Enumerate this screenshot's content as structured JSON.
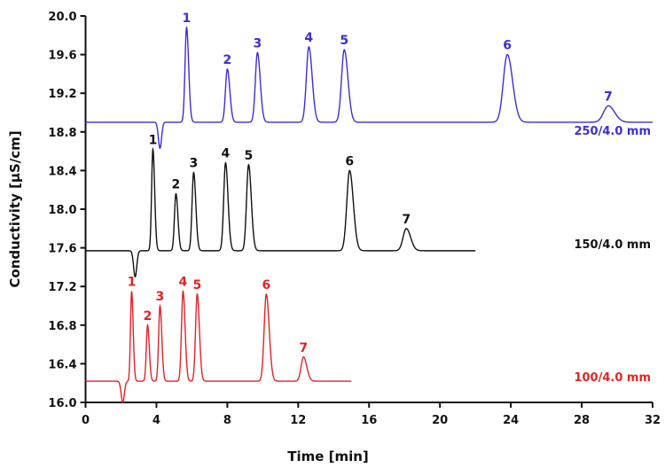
{
  "chart_data": {
    "type": "line",
    "title": "",
    "xlabel": "Time [min]",
    "ylabel": "Conductivity [µS/cm]",
    "xlim": [
      0,
      32
    ],
    "ylim": [
      16.0,
      20.0
    ],
    "xticks": [
      "0",
      "4",
      "8",
      "12",
      "16",
      "20",
      "24",
      "28",
      "32"
    ],
    "yticks": [
      "16.0",
      "16.4",
      "16.8",
      "17.2",
      "17.6",
      "18.0",
      "18.4",
      "18.8",
      "19.2",
      "19.6",
      "20.0"
    ],
    "grid": false,
    "series": [
      {
        "name": "250/4.0 mm",
        "color": "#3b2fd6",
        "baseline": 18.9,
        "end_time": 32,
        "dip": {
          "time": 4.2,
          "value": 18.63
        },
        "peaks": [
          {
            "label": "1",
            "time": 5.7,
            "height": 19.88
          },
          {
            "label": "2",
            "time": 8.0,
            "height": 19.45
          },
          {
            "label": "3",
            "time": 9.7,
            "height": 19.62
          },
          {
            "label": "4",
            "time": 12.6,
            "height": 19.68
          },
          {
            "label": "5",
            "time": 14.6,
            "height": 19.65
          },
          {
            "label": "6",
            "time": 23.8,
            "height": 19.6
          },
          {
            "label": "7",
            "time": 29.5,
            "height": 19.07
          }
        ]
      },
      {
        "name": "150/4.0 mm",
        "color": "#111111",
        "baseline": 17.57,
        "end_time": 22,
        "dip": {
          "time": 2.8,
          "value": 17.3
        },
        "peaks": [
          {
            "label": "1",
            "time": 3.8,
            "height": 18.62
          },
          {
            "label": "2",
            "time": 5.1,
            "height": 18.16
          },
          {
            "label": "3",
            "time": 6.1,
            "height": 18.38
          },
          {
            "label": "4",
            "time": 7.9,
            "height": 18.48
          },
          {
            "label": "5",
            "time": 9.2,
            "height": 18.46
          },
          {
            "label": "6",
            "time": 14.9,
            "height": 18.4
          },
          {
            "label": "7",
            "time": 18.1,
            "height": 17.8
          }
        ]
      },
      {
        "name": "100/4.0 mm",
        "color": "#e02424",
        "baseline": 16.22,
        "end_time": 15,
        "dip": {
          "time": 2.1,
          "value": 16.0
        },
        "peaks": [
          {
            "label": "1",
            "time": 2.6,
            "height": 17.15
          },
          {
            "label": "2",
            "time": 3.5,
            "height": 16.8
          },
          {
            "label": "3",
            "time": 4.2,
            "height": 17.0
          },
          {
            "label": "4",
            "time": 5.5,
            "height": 17.15
          },
          {
            "label": "5",
            "time": 6.3,
            "height": 17.12
          },
          {
            "label": "6",
            "time": 10.2,
            "height": 17.12
          },
          {
            "label": "7",
            "time": 12.3,
            "height": 16.47
          }
        ]
      }
    ]
  }
}
